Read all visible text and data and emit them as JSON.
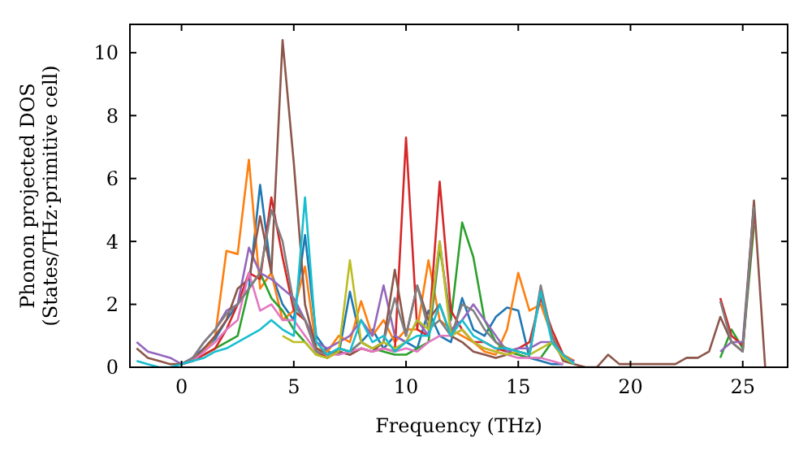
{
  "chart_data": {
    "type": "line",
    "xlabel": "Frequency (THz)",
    "ylabel": "Phonon projected DOS\n(States/THz·primitive cell)",
    "x": [
      -2,
      -1.5,
      -1,
      -0.5,
      0,
      0.5,
      1,
      1.5,
      2,
      2.5,
      3,
      3.5,
      4,
      4.5,
      5,
      5.5,
      6,
      6.5,
      7,
      7.5,
      8,
      8.5,
      9,
      9.5,
      10,
      10.5,
      11,
      11.5,
      12,
      12.5,
      13,
      13.5,
      14,
      14.5,
      15,
      15.5,
      16,
      16.5,
      17,
      17.5,
      18,
      18.5,
      19,
      19.5,
      20,
      20.5,
      21,
      21.5,
      22,
      22.5,
      23,
      23.5,
      24,
      24.5,
      25,
      25.5,
      26
    ],
    "xlim": [
      -2.3,
      27
    ],
    "ylim": [
      0,
      10.9
    ],
    "xticks": [
      0,
      5,
      10,
      15,
      20,
      25
    ],
    "yticks": [
      0,
      2,
      4,
      6,
      8,
      10
    ],
    "grid": false,
    "marker": "none",
    "line_style": "solid",
    "series": [
      {
        "color": "#1f77b4",
        "values": [
          null,
          null,
          null,
          null,
          0.1,
          0.3,
          0.6,
          0.9,
          1.5,
          2.0,
          2.5,
          5.8,
          3.0,
          2.0,
          1.5,
          4.2,
          1.0,
          0.5,
          0.4,
          2.4,
          0.8,
          1.2,
          0.6,
          1.0,
          0.8,
          0.6,
          1.8,
          1.0,
          0.8,
          2.2,
          1.2,
          1.0,
          1.6,
          1.9,
          1.8,
          0.3,
          0.2,
          0.1,
          0.1,
          null,
          null,
          null,
          null,
          null,
          null,
          null,
          null,
          null,
          null,
          null,
          null,
          null,
          null,
          null,
          null,
          null,
          null
        ]
      },
      {
        "color": "#ff7f0e",
        "values": [
          null,
          null,
          null,
          null,
          null,
          0.3,
          0.5,
          1.0,
          3.7,
          3.6,
          6.6,
          2.5,
          3.0,
          1.5,
          1.8,
          3.2,
          0.6,
          0.5,
          1.0,
          0.8,
          2.1,
          1.0,
          1.5,
          0.8,
          1.2,
          1.2,
          3.4,
          1.5,
          1.2,
          1.0,
          0.8,
          0.5,
          0.4,
          1.2,
          3.0,
          1.8,
          2.0,
          1.0,
          0.4,
          0.2,
          null,
          null,
          null,
          null,
          null,
          null,
          null,
          null,
          null,
          null,
          null,
          null,
          null,
          null,
          null,
          null,
          null
        ]
      },
      {
        "color": "#2ca02c",
        "values": [
          null,
          null,
          null,
          null,
          null,
          null,
          0.4,
          0.6,
          0.8,
          1.0,
          2.5,
          3.0,
          2.2,
          1.8,
          1.2,
          0.8,
          0.4,
          0.3,
          0.6,
          0.5,
          0.8,
          0.6,
          0.5,
          0.4,
          0.4,
          0.6,
          0.8,
          3.8,
          1.5,
          4.6,
          3.5,
          1.5,
          0.8,
          0.5,
          0.4,
          0.3,
          0.3,
          0.8,
          0.3,
          0.1,
          null,
          null,
          null,
          null,
          null,
          null,
          null,
          null,
          null,
          null,
          null,
          null,
          0.3,
          1.2,
          0.6,
          4.5,
          null
        ]
      },
      {
        "color": "#d62728",
        "values": [
          null,
          null,
          null,
          null,
          0.1,
          0.2,
          0.4,
          0.6,
          1.2,
          2.0,
          3.0,
          2.8,
          5.4,
          3.5,
          1.8,
          1.5,
          0.5,
          0.3,
          0.5,
          0.4,
          0.6,
          0.5,
          0.6,
          0.5,
          7.3,
          1.2,
          1.0,
          5.9,
          1.8,
          1.2,
          0.8,
          0.8,
          0.6,
          0.5,
          0.6,
          0.8,
          2.2,
          1.2,
          0.4,
          0.1,
          null,
          null,
          null,
          null,
          null,
          null,
          null,
          null,
          null,
          null,
          null,
          null,
          2.2,
          1.0,
          0.7,
          4.8,
          null
        ]
      },
      {
        "color": "#9467bd",
        "values": [
          0.8,
          0.5,
          0.4,
          0.3,
          0.1,
          0.3,
          0.8,
          1.2,
          1.8,
          2.0,
          3.8,
          3.0,
          2.8,
          2.5,
          2.2,
          1.5,
          0.8,
          0.6,
          0.8,
          1.0,
          1.5,
          1.0,
          2.6,
          1.0,
          0.8,
          1.5,
          1.0,
          4.0,
          1.2,
          1.5,
          2.0,
          1.5,
          1.0,
          0.5,
          0.6,
          0.6,
          0.8,
          0.8,
          0.3,
          0.2,
          null,
          null,
          null,
          null,
          null,
          null,
          null,
          null,
          null,
          null,
          null,
          null,
          0.5,
          0.8,
          0.8,
          5.2,
          null
        ]
      },
      {
        "color": "#8c564b",
        "values": [
          0.6,
          0.3,
          0.2,
          0.1,
          0.1,
          0.2,
          0.6,
          1.0,
          1.5,
          2.5,
          2.8,
          4.8,
          3.0,
          10.4,
          6.5,
          2.0,
          0.6,
          0.4,
          0.5,
          0.4,
          0.6,
          0.5,
          0.8,
          3.1,
          1.0,
          2.6,
          1.5,
          2.0,
          1.0,
          0.8,
          0.5,
          0.4,
          0.3,
          0.4,
          0.5,
          0.4,
          2.5,
          1.0,
          0.2,
          0.1,
          0,
          0,
          0.4,
          0.1,
          0.1,
          0.1,
          0.1,
          0.1,
          0.1,
          0.3,
          0.3,
          0.5,
          1.6,
          0.8,
          0.5,
          5.3,
          0
        ]
      },
      {
        "color": "#e377c2",
        "values": [
          null,
          null,
          null,
          null,
          0.1,
          0.2,
          0.5,
          0.8,
          1.2,
          1.5,
          3.0,
          1.8,
          2.0,
          1.5,
          1.5,
          1.0,
          0.5,
          0.4,
          0.4,
          0.5,
          0.6,
          0.5,
          0.6,
          0.5,
          0.6,
          0.5,
          0.8,
          1.0,
          1.0,
          1.2,
          0.8,
          0.6,
          0.5,
          0.4,
          0.3,
          0.3,
          0.3,
          0.2,
          0.1,
          null,
          null,
          null,
          null,
          null,
          null,
          null,
          null,
          null,
          null,
          null,
          null,
          null,
          null,
          null,
          null,
          null,
          null
        ]
      },
      {
        "color": "#7f7f7f",
        "values": [
          null,
          null,
          null,
          null,
          0.1,
          0.3,
          0.8,
          1.2,
          1.7,
          2.0,
          2.5,
          3.0,
          5.0,
          4.0,
          2.0,
          1.5,
          0.5,
          0.4,
          0.6,
          0.5,
          0.8,
          0.6,
          0.8,
          2.2,
          1.0,
          2.6,
          1.2,
          1.5,
          1.0,
          2.0,
          1.8,
          1.2,
          0.8,
          0.6,
          0.5,
          0.4,
          2.6,
          1.0,
          0.3,
          0.1,
          null,
          null,
          null,
          null,
          null,
          null,
          null,
          null,
          null,
          null,
          null,
          null,
          2.1,
          0.8,
          0.5,
          5.1,
          null
        ]
      },
      {
        "color": "#bcbd22",
        "values": [
          null,
          null,
          null,
          null,
          null,
          null,
          null,
          null,
          null,
          null,
          null,
          null,
          null,
          1.0,
          0.8,
          0.8,
          0.4,
          0.3,
          0.5,
          3.4,
          0.8,
          0.6,
          0.8,
          0.6,
          0.8,
          1.5,
          1.2,
          4.0,
          1.0,
          1.2,
          0.8,
          0.6,
          0.5,
          0.4,
          0.5,
          0.4,
          0.6,
          0.8,
          0.3,
          0.1,
          null,
          null,
          null,
          null,
          null,
          null,
          null,
          null,
          null,
          null,
          null,
          null,
          null,
          null,
          null,
          null,
          null
        ]
      },
      {
        "color": "#17becf",
        "values": [
          0.2,
          0.1,
          0,
          0,
          0.1,
          0.2,
          0.3,
          0.5,
          0.6,
          0.8,
          1.0,
          1.2,
          1.5,
          1.2,
          1.0,
          5.4,
          0.8,
          0.4,
          0.6,
          0.5,
          1.5,
          0.8,
          1.0,
          0.5,
          0.8,
          1.0,
          1.0,
          2.0,
          1.0,
          1.5,
          1.0,
          0.8,
          0.6,
          0.6,
          0.5,
          0.4,
          2.4,
          0.8,
          0.4,
          0.1,
          null,
          null,
          null,
          null,
          null,
          null,
          null,
          null,
          null,
          null,
          null,
          null,
          null,
          null,
          null,
          null,
          null
        ]
      }
    ]
  }
}
